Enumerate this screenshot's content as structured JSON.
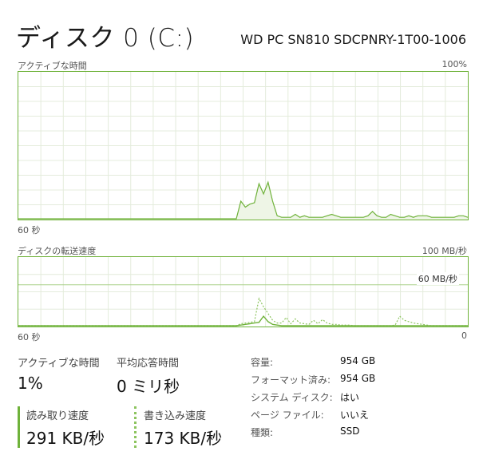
{
  "header": {
    "title": "ディスク 0 (C:)",
    "model": "WD PC SN810 SDCPNRY-1T00-1006"
  },
  "active_time_graph": {
    "label": "アクティブな時間",
    "max_label": "100%",
    "time_label": "60 秒",
    "values": [
      0,
      0,
      0,
      0,
      0,
      0,
      0,
      0,
      0,
      0,
      0,
      0,
      0,
      0,
      0,
      0,
      0,
      0,
      0,
      0,
      0,
      0,
      0,
      0,
      0,
      0,
      0,
      0,
      0,
      0,
      0,
      0,
      0,
      0,
      0,
      0,
      0,
      0,
      0,
      0,
      0,
      0,
      0,
      0,
      0,
      0,
      0,
      0,
      0,
      12,
      8,
      10,
      11,
      24,
      17,
      25,
      12,
      2,
      1,
      1,
      1,
      3,
      1,
      2,
      1,
      1,
      1,
      1,
      2,
      3,
      2,
      1,
      1,
      1,
      1,
      1,
      1,
      2,
      5,
      2,
      1,
      1,
      3,
      2,
      1,
      1,
      2,
      1,
      2,
      2,
      2,
      1,
      1,
      1,
      1,
      1,
      1,
      2,
      2,
      1
    ],
    "color": "#6fb23a"
  },
  "transfer_graph": {
    "label": "ディスクの転送速度",
    "max_label": "100 MB/秒",
    "mid_label": "60 MB/秒",
    "time_label": "60 秒",
    "zero_label": "0",
    "read_values": [
      0,
      0,
      0,
      0,
      0,
      0,
      0,
      0,
      0,
      0,
      0,
      0,
      0,
      0,
      0,
      0,
      0,
      0,
      0,
      0,
      0,
      0,
      0,
      0,
      0,
      0,
      0,
      0,
      0,
      0,
      0,
      0,
      0,
      0,
      0,
      0,
      0,
      0,
      0,
      0,
      0,
      0,
      0,
      0,
      0,
      0,
      0,
      0,
      0,
      1,
      2,
      3,
      4,
      5,
      14,
      6,
      2,
      1,
      0,
      0,
      0,
      0,
      0,
      0,
      0,
      0,
      0,
      0,
      0,
      0,
      0,
      0,
      0,
      0,
      0,
      0,
      0,
      0,
      0,
      0,
      0,
      0,
      0,
      0,
      0,
      0,
      0,
      0,
      0,
      0,
      0,
      0,
      0,
      0,
      0,
      0,
      0,
      0,
      0,
      0
    ],
    "write_values": [
      0,
      0,
      0,
      0,
      0,
      0,
      0,
      0,
      0,
      0,
      0,
      0,
      0,
      0,
      0,
      0,
      0,
      0,
      0,
      0,
      0,
      0,
      0,
      0,
      0,
      0,
      0,
      0,
      0,
      0,
      0,
      0,
      0,
      0,
      0,
      0,
      0,
      0,
      0,
      0,
      0,
      0,
      0,
      0,
      0,
      0,
      0,
      0,
      0,
      3,
      4,
      5,
      6,
      40,
      28,
      18,
      8,
      4,
      4,
      12,
      3,
      10,
      4,
      3,
      2,
      8,
      3,
      9,
      4,
      2,
      2,
      1,
      1,
      1,
      0,
      0,
      0,
      0,
      0,
      0,
      0,
      0,
      0,
      1,
      14,
      8,
      6,
      4,
      3,
      2,
      1,
      0,
      0,
      0,
      0,
      0,
      0,
      0,
      0,
      0
    ],
    "color": "#6fb23a"
  },
  "stats": {
    "active_time_label": "アクティブな時間",
    "active_time_value": "1%",
    "response_label": "平均応答時間",
    "response_value": "0 ミリ秒",
    "read_label": "読み取り速度",
    "read_value": "291 KB/秒",
    "write_label": "書き込み速度",
    "write_value": "173 KB/秒"
  },
  "properties": [
    {
      "label": "容量:",
      "value": "954 GB"
    },
    {
      "label": "フォーマット済み:",
      "value": "954 GB"
    },
    {
      "label": "システム ディスク:",
      "value": "はい"
    },
    {
      "label": "ページ ファイル:",
      "value": "いいえ"
    },
    {
      "label": "種類:",
      "value": "SSD"
    }
  ]
}
